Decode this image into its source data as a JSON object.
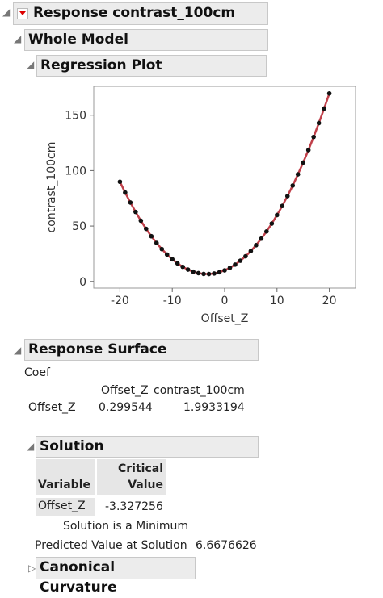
{
  "title": "Response contrast_100cm",
  "whole_model": "Whole Model",
  "regression_plot": "Regression Plot",
  "chart_data": {
    "type": "scatter",
    "x_label": "Offset_Z",
    "y_label": "contrast_100cm",
    "x": [
      -20,
      -19,
      -18,
      -17,
      -16,
      -15,
      -14,
      -13,
      -12,
      -11,
      -10,
      -9,
      -8,
      -7,
      -6,
      -5,
      -4,
      -3,
      -2,
      -1,
      0,
      1,
      2,
      3,
      4,
      5,
      6,
      7,
      8,
      9,
      10,
      11,
      12,
      13,
      14,
      15,
      16,
      17,
      18,
      19,
      20
    ],
    "values": [
      89.9,
      80.2,
      71.2,
      62.7,
      54.8,
      47.5,
      40.8,
      34.7,
      29.2,
      24.3,
      20.0,
      16.3,
      13.2,
      10.7,
      8.8,
      7.5,
      6.8,
      6.7,
      7.2,
      8.3,
      10.0,
      12.3,
      15.2,
      18.7,
      22.7,
      27.4,
      32.7,
      38.6,
      45.1,
      52.2,
      59.9,
      68.1,
      77.0,
      86.5,
      96.6,
      107.3,
      118.5,
      130.4,
      142.9,
      156.0,
      169.6
    ],
    "marker_color": "#111111",
    "fit_line": true,
    "line_color": "#c0404a",
    "xlim": [
      -25,
      25
    ],
    "xticks": [
      -20,
      -10,
      0,
      10,
      20
    ],
    "ylim": [
      -6,
      176
    ],
    "yticks": [
      0,
      50,
      100,
      150
    ]
  },
  "response_surface": {
    "title": "Response Surface",
    "coef": "Coef",
    "columns": [
      "Offset_Z",
      "contrast_100cm"
    ],
    "rows": [
      {
        "label": "Offset_Z",
        "values": [
          "0.299544",
          "1.9933194"
        ]
      }
    ]
  },
  "solution": {
    "title": "Solution",
    "columns": [
      "Variable",
      "Critical Value"
    ],
    "rows": [
      [
        "Offset_Z",
        "-3.327256"
      ]
    ],
    "note": "Solution is a Minimum",
    "predicted_label": "Predicted Value at Solution",
    "predicted_value": "6.6676626"
  },
  "canonical_curvature": "Canonical Curvature"
}
